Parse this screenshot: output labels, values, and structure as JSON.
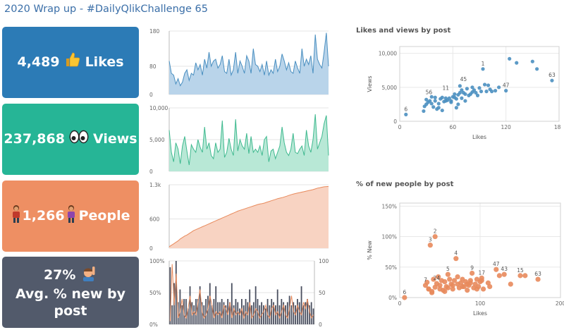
{
  "header": {
    "title": "2020 Wrap up - #DailyQlikChallenge 65"
  },
  "kpis": {
    "likes": {
      "value": "4,489",
      "label": "Likes",
      "icon": "thumbs-up-icon",
      "color": "#2c7bb6"
    },
    "views": {
      "value": "237,868",
      "label": "Views",
      "icon": "eyes-icon",
      "color": "#26b596"
    },
    "people": {
      "value": "1,266",
      "label": "People",
      "icon": "person-icon",
      "color": "#ee8f63"
    },
    "newpct": {
      "value": "27%",
      "label": "Avg. % new by post",
      "icon": "raising-hand-icon",
      "color": "#525a6b"
    }
  },
  "colors": {
    "blue": "#4a8fc0",
    "blue_fill": "#b9d4ea",
    "teal": "#3fb98f",
    "teal_fill": "#b8e8d6",
    "orange": "#e88a5c",
    "orange_fill": "#f8d3c2",
    "dark": "#4b5060"
  },
  "sparklines": {
    "likes_axis": [
      "180",
      "80",
      "0"
    ],
    "views_axis": [
      "10,000",
      "5,000",
      "0"
    ],
    "people_axis": [
      "1.3k",
      "600",
      "0"
    ],
    "combo_axis_left": [
      "100%",
      "50%",
      "0%"
    ],
    "combo_axis_right": [
      "100",
      "50",
      "0"
    ]
  },
  "chart_data": [
    {
      "type": "area",
      "name": "likes-per-post",
      "y_ticks": [
        0,
        80,
        180
      ],
      "ylim": [
        0,
        180
      ],
      "values": [
        95,
        60,
        55,
        30,
        45,
        25,
        35,
        60,
        70,
        40,
        60,
        55,
        90,
        70,
        85,
        55,
        100,
        75,
        120,
        80,
        95,
        100,
        75,
        85,
        110,
        65,
        60,
        100,
        55,
        70,
        120,
        60,
        95,
        80,
        60,
        110,
        95,
        60,
        130,
        85,
        80,
        65,
        85,
        55,
        95,
        55,
        70,
        60,
        100,
        65,
        80,
        115,
        95,
        70,
        90,
        65,
        60,
        95,
        75,
        60,
        130,
        80,
        100,
        85,
        110,
        60,
        170,
        100,
        85,
        75,
        120,
        175,
        80
      ]
    },
    {
      "type": "area",
      "name": "views-per-post",
      "y_ticks": [
        0,
        5000,
        10000
      ],
      "ylim": [
        0,
        10000
      ],
      "values": [
        6500,
        3000,
        1500,
        4500,
        3500,
        1200,
        4000,
        5500,
        3200,
        1000,
        4200,
        3500,
        3000,
        5000,
        3800,
        3000,
        7000,
        3500,
        4500,
        2500,
        2000,
        4500,
        3000,
        3500,
        8000,
        2200,
        3000,
        5200,
        3500,
        2500,
        8200,
        3200,
        5000,
        4000,
        3500,
        6000,
        2800,
        5500,
        3000,
        3500,
        3000,
        4000,
        2500,
        5000,
        5500,
        1500,
        3200,
        3500,
        2000,
        3000,
        4000,
        7000,
        4500,
        3000,
        2500,
        3500,
        6000,
        3000,
        2800,
        3500,
        4000,
        2500,
        6500,
        4000,
        3000,
        5000,
        9000,
        3500,
        4500,
        5500,
        7500,
        8800,
        2500
      ]
    },
    {
      "type": "area",
      "name": "cumulative-people",
      "y_ticks": [
        0,
        600,
        1300
      ],
      "ylim": [
        0,
        1300
      ],
      "values": [
        30,
        60,
        90,
        120,
        150,
        190,
        220,
        250,
        270,
        300,
        330,
        360,
        380,
        400,
        420,
        440,
        460,
        480,
        500,
        520,
        540,
        560,
        580,
        600,
        620,
        640,
        660,
        680,
        700,
        720,
        740,
        760,
        775,
        790,
        805,
        820,
        835,
        850,
        865,
        880,
        895,
        905,
        915,
        925,
        940,
        955,
        970,
        985,
        1000,
        1015,
        1025,
        1035,
        1050,
        1065,
        1080,
        1095,
        1110,
        1120,
        1130,
        1140,
        1150,
        1160,
        1170,
        1180,
        1190,
        1200,
        1215,
        1230,
        1240,
        1250,
        1258,
        1262,
        1266
      ]
    },
    {
      "type": "bar",
      "name": "new-pct-and-people-combo",
      "y_ticks": [
        0,
        50,
        100
      ],
      "ylim": [
        0,
        100
      ],
      "bars_people": [
        90,
        30,
        65,
        100,
        35,
        55,
        30,
        40,
        40,
        25,
        60,
        35,
        30,
        40,
        40,
        60,
        35,
        30,
        40,
        45,
        65,
        30,
        40,
        60,
        35,
        35,
        40,
        35,
        30,
        40,
        35,
        65,
        30,
        40,
        35,
        25,
        40,
        30,
        40,
        35,
        55,
        30,
        35,
        60,
        40,
        30,
        35,
        30,
        25,
        40,
        30,
        40,
        35,
        30,
        55,
        30,
        40,
        35,
        30,
        35,
        45,
        30,
        35,
        30,
        40,
        35,
        60,
        30,
        35,
        40,
        30,
        35,
        25
      ],
      "line_new_pct": [
        5,
        95,
        30,
        80,
        10,
        20,
        40,
        15,
        10,
        25,
        45,
        15,
        20,
        15,
        35,
        55,
        20,
        10,
        15,
        25,
        45,
        30,
        10,
        20,
        15,
        20,
        10,
        30,
        25,
        15,
        35,
        10,
        25,
        15,
        20,
        15,
        25,
        10,
        20,
        15,
        35,
        10,
        15,
        25,
        20,
        10,
        15,
        20,
        30,
        15,
        10,
        25,
        30,
        15,
        20,
        10,
        20,
        30,
        15,
        10,
        25,
        45,
        20,
        15,
        30,
        20,
        15,
        35,
        25,
        40,
        20,
        10,
        15
      ]
    },
    {
      "type": "scatter",
      "title": "Likes and views by post",
      "xlabel": "Likes",
      "ylabel": "Views",
      "xlim": [
        0,
        180
      ],
      "ylim": [
        0,
        11000
      ],
      "x_ticks": [
        0,
        60,
        120,
        180
      ],
      "y_ticks": [
        0,
        5000,
        10000
      ],
      "x_tick_labels": [
        "0",
        "60",
        "120",
        "180"
      ],
      "y_tick_labels": [
        "0",
        "5,000",
        "10,000"
      ],
      "points": [
        [
          7,
          1000
        ],
        [
          27,
          1500
        ],
        [
          28,
          2200
        ],
        [
          30,
          2500
        ],
        [
          32,
          2800
        ],
        [
          34,
          3000
        ],
        [
          36,
          2600
        ],
        [
          38,
          2100
        ],
        [
          40,
          3000
        ],
        [
          42,
          1800
        ],
        [
          44,
          2600
        ],
        [
          46,
          3300
        ],
        [
          48,
          3500
        ],
        [
          50,
          2900
        ],
        [
          52,
          3400
        ],
        [
          54,
          3100
        ],
        [
          56,
          3400
        ],
        [
          58,
          3000
        ],
        [
          60,
          3600
        ],
        [
          62,
          3500
        ],
        [
          64,
          3300
        ],
        [
          66,
          3900
        ],
        [
          68,
          4200
        ],
        [
          70,
          4600
        ],
        [
          72,
          4200
        ],
        [
          74,
          4000
        ],
        [
          76,
          4800
        ],
        [
          78,
          3800
        ],
        [
          80,
          4000
        ],
        [
          82,
          4300
        ],
        [
          84,
          4600
        ],
        [
          86,
          4200
        ],
        [
          88,
          3800
        ],
        [
          90,
          4900
        ],
        [
          92,
          4400
        ],
        [
          94,
          7700
        ],
        [
          96,
          5400
        ],
        [
          98,
          4400
        ],
        [
          100,
          5300
        ],
        [
          102,
          4700
        ],
        [
          104,
          4400
        ],
        [
          108,
          4500
        ],
        [
          112,
          5000
        ],
        [
          120,
          4500
        ],
        [
          124,
          9200
        ],
        [
          132,
          8600
        ],
        [
          150,
          8800
        ],
        [
          155,
          7700
        ],
        [
          172,
          6000
        ],
        [
          30,
          3200
        ],
        [
          36,
          3600
        ],
        [
          40,
          3500
        ],
        [
          44,
          2000
        ],
        [
          48,
          1600
        ],
        [
          52,
          3000
        ],
        [
          58,
          2800
        ],
        [
          64,
          2000
        ],
        [
          70,
          3400
        ],
        [
          74,
          3000
        ],
        [
          82,
          5000
        ],
        [
          62,
          4000
        ],
        [
          66,
          2500
        ],
        [
          68,
          5200
        ]
      ],
      "labels": [
        {
          "text": "6",
          "x": 7,
          "y": 1000
        },
        {
          "text": "56",
          "x": 33,
          "y": 3500
        },
        {
          "text": "11",
          "x": 52,
          "y": 4100
        },
        {
          "text": "45",
          "x": 72,
          "y": 5400
        },
        {
          "text": "1",
          "x": 94,
          "y": 7700
        },
        {
          "text": "47",
          "x": 120,
          "y": 4500
        },
        {
          "text": "63",
          "x": 172,
          "y": 6000
        }
      ]
    },
    {
      "type": "scatter",
      "title": "% of new people by post",
      "xlabel": "Likes",
      "ylabel": "% New",
      "xlim": [
        0,
        200
      ],
      "ylim": [
        0,
        155
      ],
      "x_ticks": [
        0,
        100,
        200
      ],
      "y_ticks": [
        0,
        50,
        100,
        150
      ],
      "x_tick_labels": [
        "0",
        "100",
        "200"
      ],
      "y_tick_labels": [
        "0%",
        "50%",
        "100%",
        "150%"
      ],
      "points": [
        [
          6,
          0
        ],
        [
          32,
          20
        ],
        [
          34,
          25
        ],
        [
          36,
          14
        ],
        [
          38,
          86
        ],
        [
          40,
          10
        ],
        [
          42,
          30
        ],
        [
          44,
          17
        ],
        [
          46,
          23
        ],
        [
          48,
          34
        ],
        [
          50,
          20
        ],
        [
          52,
          28
        ],
        [
          54,
          12
        ],
        [
          56,
          26
        ],
        [
          58,
          18
        ],
        [
          60,
          38
        ],
        [
          62,
          30
        ],
        [
          64,
          22
        ],
        [
          66,
          14
        ],
        [
          68,
          28
        ],
        [
          70,
          64
        ],
        [
          72,
          34
        ],
        [
          74,
          16
        ],
        [
          76,
          24
        ],
        [
          78,
          30
        ],
        [
          80,
          18
        ],
        [
          82,
          26
        ],
        [
          84,
          12
        ],
        [
          86,
          20
        ],
        [
          88,
          28
        ],
        [
          90,
          40
        ],
        [
          92,
          16
        ],
        [
          94,
          22
        ],
        [
          96,
          30
        ],
        [
          98,
          18
        ],
        [
          100,
          26
        ],
        [
          102,
          32
        ],
        [
          104,
          14
        ],
        [
          110,
          24
        ],
        [
          112,
          18
        ],
        [
          120,
          46
        ],
        [
          124,
          36
        ],
        [
          130,
          38
        ],
        [
          138,
          22
        ],
        [
          150,
          36
        ],
        [
          156,
          36
        ],
        [
          172,
          30
        ],
        [
          44,
          100
        ],
        [
          36,
          14
        ],
        [
          40,
          8
        ],
        [
          50,
          14
        ],
        [
          56,
          10
        ],
        [
          60,
          16
        ],
        [
          66,
          20
        ],
        [
          72,
          22
        ],
        [
          78,
          18
        ],
        [
          84,
          22
        ],
        [
          88,
          24
        ],
        [
          96,
          14
        ],
        [
          102,
          28
        ]
      ],
      "labels": [
        {
          "text": "6",
          "x": 6,
          "y": 0
        },
        {
          "text": "2",
          "x": 44,
          "y": 100
        },
        {
          "text": "3",
          "x": 38,
          "y": 86
        },
        {
          "text": "4",
          "x": 70,
          "y": 64
        },
        {
          "text": "5",
          "x": 60,
          "y": 38
        },
        {
          "text": "7",
          "x": 32,
          "y": 20
        },
        {
          "text": "24",
          "x": 46,
          "y": 23
        },
        {
          "text": "9",
          "x": 90,
          "y": 40
        },
        {
          "text": "17",
          "x": 102,
          "y": 32
        },
        {
          "text": "47",
          "x": 120,
          "y": 46
        },
        {
          "text": "43",
          "x": 130,
          "y": 38
        },
        {
          "text": "15",
          "x": 150,
          "y": 36
        },
        {
          "text": "63",
          "x": 172,
          "y": 30
        }
      ]
    }
  ]
}
